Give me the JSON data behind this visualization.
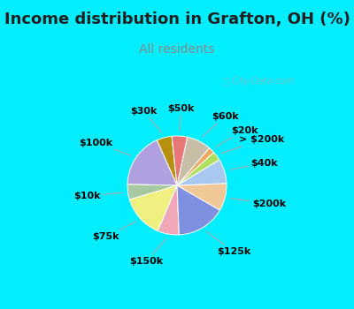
{
  "title": "Income distribution in Grafton, OH (%)",
  "subtitle": "All residents",
  "watermark": "ⓘ City-Data.com",
  "labels": [
    "$30k",
    "$100k",
    "$10k",
    "$75k",
    "$150k",
    "$125k",
    "$200k",
    "$40k",
    "> $200k",
    "$20k",
    "$60k",
    "$50k"
  ],
  "sizes": [
    5,
    18,
    5,
    14,
    7,
    16,
    9,
    8,
    3,
    2,
    8,
    5
  ],
  "colors": [
    "#b89010",
    "#b0a0e0",
    "#a8c8a0",
    "#f0f080",
    "#f0a8b8",
    "#8090e0",
    "#f0c898",
    "#a8c8f0",
    "#b0e060",
    "#f0a860",
    "#c8bea8",
    "#e87878"
  ],
  "bg_color": "#00eeff",
  "chart_bg_outer": "#00eeff",
  "chart_bg_inner": "#e0f5ec",
  "title_color": "#202020",
  "subtitle_color": "#888888",
  "title_fontsize": 13,
  "subtitle_fontsize": 10,
  "label_fontsize": 8,
  "start_angle": 96
}
